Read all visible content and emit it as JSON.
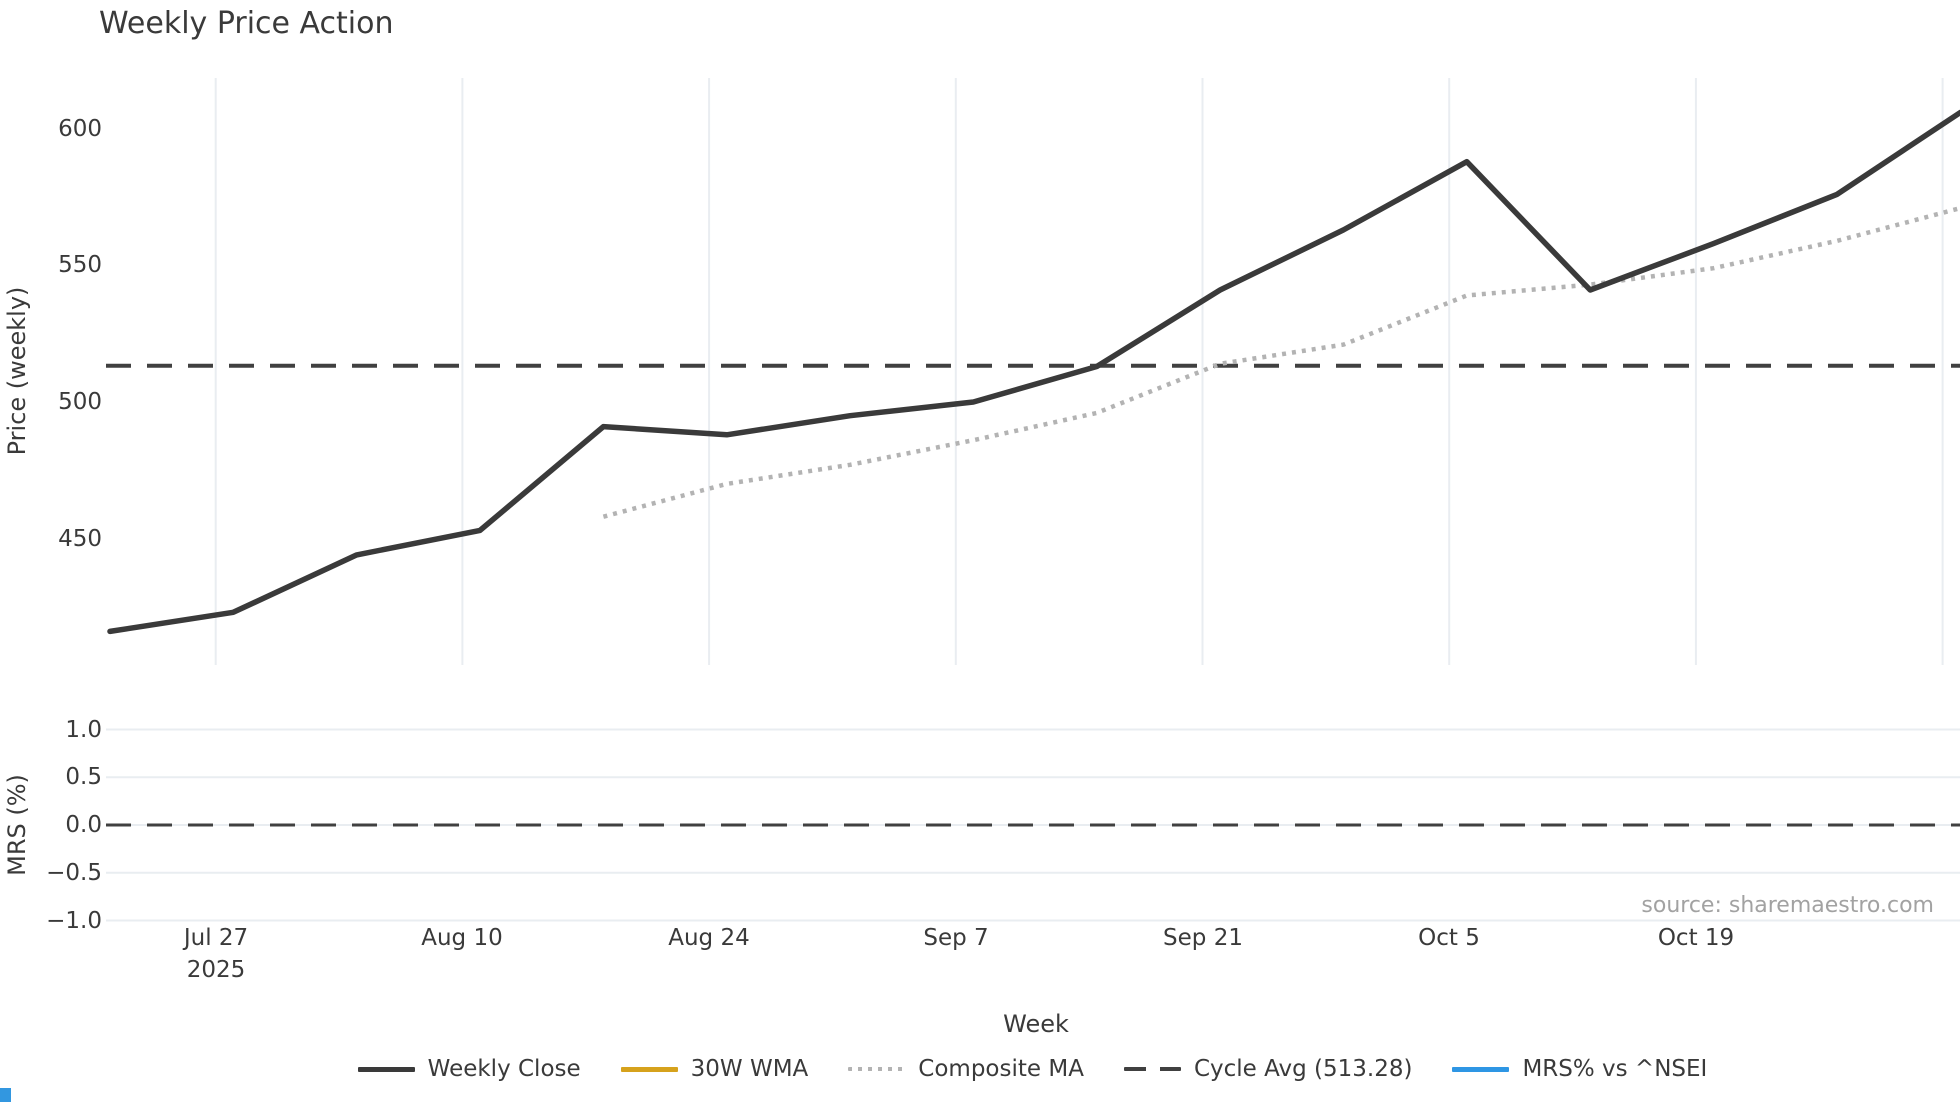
{
  "source_text": "source: sharemaestro.com",
  "colors": {
    "background": "#ffffff",
    "text": "#3a3a3a",
    "grid": "#e9edf1",
    "source_text": "#a2a2a2",
    "weekly_close": "#3a3a3a",
    "wma_30w": "#d6a21c",
    "composite_ma": "#b3b3b3",
    "cycle_avg": "#404040",
    "mrs_line": "#2e96e4",
    "ui_fragment_blue": "#3297e0"
  },
  "chart_data": {
    "type": "line",
    "title": "Weekly Price Action",
    "x_axis": {
      "label": "Week",
      "unit": "weekly",
      "tick_labels": [
        "Jul 27",
        "Aug 10",
        "Aug 24",
        "Sep 7",
        "Sep 21",
        "Oct 5",
        "Oct 19"
      ],
      "tick_year_sublabel": "2025",
      "n_weeks": 16
    },
    "price_axis": {
      "label": "Price (weekly)",
      "ticks": [
        450,
        500,
        550,
        600
      ],
      "range_approx": [
        405,
        623
      ],
      "grid": "vertical-only"
    },
    "mrs_axis": {
      "label": "MRS (%)",
      "ticks": [
        1.0,
        0.5,
        0.0,
        -0.5,
        -1.0
      ],
      "tick_labels": [
        "1.0",
        "0.5",
        "0.0",
        "−0.5",
        "−1.0"
      ],
      "range_approx": [
        -1.15,
        1.15
      ],
      "grid": "horizontal-only"
    },
    "cycle_avg_value": 513.28,
    "series": [
      {
        "name": "Weekly Close",
        "panel": "price",
        "style": "solid",
        "color": "#3a3a3a",
        "values": [
          416,
          423,
          444,
          453,
          491,
          488,
          495,
          500,
          513,
          541,
          563,
          588,
          541,
          558,
          576,
          606
        ]
      },
      {
        "name": "30W WMA",
        "panel": "price",
        "style": "solid",
        "color": "#d6a21c",
        "values": []
      },
      {
        "name": "Composite MA",
        "panel": "price",
        "style": "dotted",
        "color": "#b3b3b3",
        "values": [
          null,
          null,
          null,
          null,
          458,
          470,
          477,
          486,
          496,
          514,
          521,
          539,
          543,
          549,
          559,
          571
        ]
      },
      {
        "name": "Cycle Avg (513.28)",
        "panel": "price",
        "style": "dashed",
        "color": "#404040",
        "constant": 513.28
      },
      {
        "name": "MRS% vs ^NSEI",
        "panel": "mrs",
        "style": "solid",
        "color": "#2e96e4",
        "values": []
      }
    ]
  }
}
